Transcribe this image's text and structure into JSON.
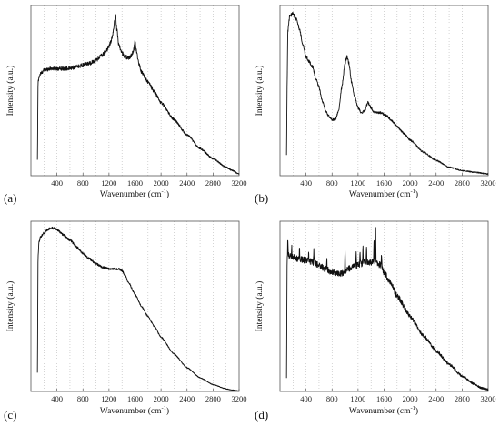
{
  "chart_data": [
    {
      "panel": "(a)",
      "type": "line",
      "xlabel": "Wavenumber (cm",
      "xlabel_sup": "-1",
      "xlabel_end": ")",
      "ylabel": "Intensity (a.u.)",
      "xlim": [
        0,
        3200
      ],
      "ylim": [
        0,
        1
      ],
      "xticks": [
        "400",
        "800",
        "1200",
        "1600",
        "2000",
        "2400",
        "2800",
        "3200"
      ],
      "grid": "vertical dotted every 200",
      "noise": 0.012,
      "series": [
        {
          "x": [
            100,
            110,
            125,
            150,
            200,
            300,
            400,
            500,
            600,
            700,
            800,
            900,
            1000,
            1100,
            1150,
            1200,
            1250,
            1280,
            1300,
            1320,
            1350,
            1400,
            1450,
            1500,
            1550,
            1580,
            1600,
            1620,
            1650,
            1700,
            1800,
            1900,
            2000,
            2200,
            2400,
            2600,
            2800,
            3000,
            3100,
            3200
          ],
          "y": [
            0.09,
            0.55,
            0.58,
            0.6,
            0.62,
            0.63,
            0.63,
            0.63,
            0.63,
            0.64,
            0.65,
            0.66,
            0.68,
            0.71,
            0.73,
            0.76,
            0.81,
            0.89,
            0.95,
            0.86,
            0.77,
            0.72,
            0.7,
            0.69,
            0.71,
            0.74,
            0.79,
            0.74,
            0.67,
            0.61,
            0.55,
            0.49,
            0.43,
            0.33,
            0.24,
            0.16,
            0.1,
            0.05,
            0.03,
            0.01
          ]
        }
      ]
    },
    {
      "panel": "(b)",
      "type": "line",
      "xlabel": "Wavenumber (cm",
      "xlabel_sup": "-1",
      "xlabel_end": ")",
      "ylabel": "Intensity (a.u.)",
      "xlim": [
        0,
        3200
      ],
      "ylim": [
        0,
        1
      ],
      "xticks": [
        "400",
        "800",
        "1200",
        "1600",
        "2000",
        "2400",
        "2800",
        "3200"
      ],
      "grid": "vertical dotted every 200",
      "noise": 0.01,
      "series": [
        {
          "x": [
            100,
            110,
            120,
            150,
            200,
            250,
            300,
            350,
            400,
            450,
            500,
            550,
            600,
            650,
            700,
            750,
            800,
            850,
            900,
            950,
            1000,
            1030,
            1060,
            1100,
            1150,
            1200,
            1250,
            1300,
            1350,
            1400,
            1450,
            1500,
            1550,
            1600,
            1650,
            1700,
            1800,
            1900,
            2000,
            2200,
            2400,
            2600,
            2800,
            3000,
            3200
          ],
          "y": [
            0.12,
            0.55,
            0.85,
            0.94,
            0.95,
            0.92,
            0.86,
            0.77,
            0.7,
            0.67,
            0.64,
            0.57,
            0.52,
            0.44,
            0.38,
            0.35,
            0.33,
            0.33,
            0.38,
            0.52,
            0.66,
            0.7,
            0.66,
            0.55,
            0.46,
            0.4,
            0.37,
            0.38,
            0.43,
            0.4,
            0.37,
            0.37,
            0.37,
            0.36,
            0.35,
            0.33,
            0.29,
            0.25,
            0.21,
            0.14,
            0.09,
            0.05,
            0.03,
            0.02,
            0.01
          ]
        }
      ]
    },
    {
      "panel": "(c)",
      "type": "line",
      "xlabel": "Wavenumber (cm",
      "xlabel_sup": "-1",
      "xlabel_end": ")",
      "ylabel": "Intensity (a.u.)",
      "xlim": [
        0,
        3200
      ],
      "ylim": [
        0,
        1
      ],
      "xticks": [
        "400",
        "800",
        "1200",
        "1600",
        "2000",
        "2400",
        "2800",
        "3200"
      ],
      "grid": "vertical dotted every 200",
      "noise": 0.006,
      "series": [
        {
          "x": [
            100,
            110,
            125,
            150,
            200,
            250,
            300,
            350,
            400,
            500,
            600,
            700,
            800,
            900,
            1000,
            1100,
            1200,
            1300,
            1350,
            1400,
            1450,
            1500,
            1600,
            1700,
            1800,
            1900,
            2000,
            2200,
            2400,
            2600,
            2800,
            3000,
            3100,
            3200
          ],
          "y": [
            0.11,
            0.8,
            0.88,
            0.91,
            0.93,
            0.95,
            0.96,
            0.96,
            0.95,
            0.92,
            0.89,
            0.85,
            0.81,
            0.78,
            0.75,
            0.73,
            0.72,
            0.72,
            0.72,
            0.71,
            0.68,
            0.64,
            0.57,
            0.5,
            0.44,
            0.38,
            0.32,
            0.22,
            0.14,
            0.08,
            0.04,
            0.015,
            0.008,
            0.003
          ]
        }
      ]
    },
    {
      "panel": "(d)",
      "type": "line",
      "xlabel": "Wavenumber (cm",
      "xlabel_sup": "-1",
      "xlabel_end": ")",
      "ylabel": "Intensity (a.u.)",
      "xlim": [
        0,
        3200
      ],
      "ylim": [
        0,
        1
      ],
      "xticks": [
        "400",
        "800",
        "1200",
        "1600",
        "2000",
        "2400",
        "2800",
        "3200"
      ],
      "grid": "vertical dotted every 200",
      "noise": 0.018,
      "series": [
        {
          "x": [
            100,
            110,
            125,
            150,
            200,
            250,
            300,
            400,
            500,
            600,
            700,
            800,
            900,
            1000,
            1050,
            1100,
            1150,
            1200,
            1250,
            1300,
            1350,
            1400,
            1450,
            1500,
            1550,
            1600,
            1700,
            1800,
            2000,
            2200,
            2400,
            2600,
            2800,
            3000,
            3100,
            3200
          ],
          "y": [
            0.08,
            0.78,
            0.8,
            0.8,
            0.79,
            0.78,
            0.78,
            0.77,
            0.76,
            0.74,
            0.72,
            0.7,
            0.69,
            0.7,
            0.72,
            0.73,
            0.74,
            0.74,
            0.75,
            0.76,
            0.76,
            0.76,
            0.76,
            0.75,
            0.74,
            0.7,
            0.64,
            0.56,
            0.44,
            0.33,
            0.24,
            0.16,
            0.09,
            0.04,
            0.02,
            0.01
          ]
        }
      ],
      "spikes": [
        {
          "x": 120,
          "h": 0.1
        },
        {
          "x": 180,
          "h": 0.07
        },
        {
          "x": 300,
          "h": 0.06
        },
        {
          "x": 440,
          "h": 0.05
        },
        {
          "x": 520,
          "h": 0.08
        },
        {
          "x": 720,
          "h": 0.06
        },
        {
          "x": 1000,
          "h": 0.13
        },
        {
          "x": 1170,
          "h": 0.07
        },
        {
          "x": 1230,
          "h": 0.09
        },
        {
          "x": 1275,
          "h": 0.12
        },
        {
          "x": 1330,
          "h": 0.1
        },
        {
          "x": 1445,
          "h": 0.14
        },
        {
          "x": 1470,
          "h": 0.21
        },
        {
          "x": 1560,
          "h": 0.07
        }
      ]
    }
  ]
}
